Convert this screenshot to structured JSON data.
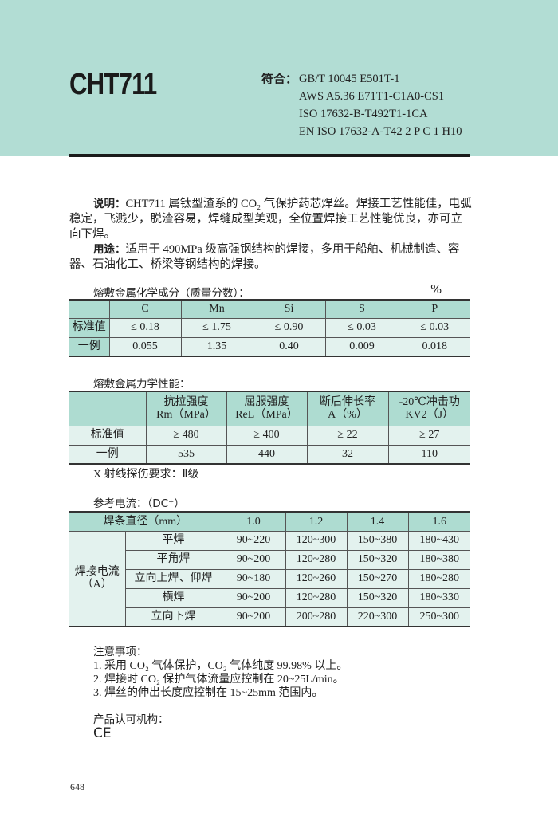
{
  "header": {
    "title": "CHT711",
    "standards_label": "符合：",
    "standards": [
      "GB/T 10045 E501T-1",
      "AWS A5.36 E71T1-C1A0-CS1",
      "ISO 17632-B-T492T1-1CA",
      "EN ISO 17632-A-T42 2 P C 1 H10"
    ]
  },
  "description": {
    "label": "说明：",
    "text": "CHT711 属钛型渣系的 CO₂ 气保护药芯焊丝。焊接工艺性能佳，电弧稳定，飞溅少，脱渣容易，焊缝成型美观，全位置焊接工艺性能优良，亦可立向下焊。"
  },
  "usage": {
    "label": "用途：",
    "text": "适用于 490MPa 级高强钢结构的焊接，多用于船舶、机械制造、容器、石油化工、桥梁等钢结构的焊接。"
  },
  "chem": {
    "title": "熔敷金属化学成分（质量分数）：",
    "unit": "%",
    "headers": [
      "",
      "C",
      "Mn",
      "Si",
      "S",
      "P"
    ],
    "rows": [
      [
        "标准值",
        "≤ 0.18",
        "≤ 1.75",
        "≤ 0.90",
        "≤ 0.03",
        "≤ 0.03"
      ],
      [
        "一例",
        "0.055",
        "1.35",
        "0.40",
        "0.009",
        "0.018"
      ]
    ]
  },
  "mech": {
    "title": "熔敷金属力学性能：",
    "headers": [
      "",
      "抗拉强度\nRm（MPa）",
      "屈服强度\nReL（MPa）",
      "断后伸长率\nA（%）",
      "-20℃冲击功\nKV2（J）"
    ],
    "rows": [
      [
        "标准值",
        "≥ 480",
        "≥ 400",
        "≥ 22",
        "≥ 27"
      ],
      [
        "一例",
        "535",
        "440",
        "32",
        "110"
      ]
    ],
    "xray": "X 射线探伤要求：Ⅱ级"
  },
  "current": {
    "title": "参考电流：（DC⁺）",
    "diam_header": "焊条直径（mm）",
    "diameters": [
      "1.0",
      "1.2",
      "1.4",
      "1.6"
    ],
    "group_label": "焊接电流\n（A）",
    "rows": [
      [
        "平焊",
        "90~220",
        "120~300",
        "150~380",
        "180~430"
      ],
      [
        "平角焊",
        "90~200",
        "120~280",
        "150~320",
        "180~380"
      ],
      [
        "立向上焊、仰焊",
        "90~180",
        "120~260",
        "150~270",
        "180~280"
      ],
      [
        "横焊",
        "90~200",
        "120~280",
        "150~320",
        "180~330"
      ],
      [
        "立向下焊",
        "90~200",
        "200~280",
        "220~300",
        "250~300"
      ]
    ]
  },
  "notes": {
    "title": "注意事项：",
    "items": [
      "1. 采用 CO₂ 气体保护，CO₂ 气体纯度 99.98% 以上。",
      "2. 焊接时 CO₂ 保护气体流量应控制在 20~25L/min。",
      "3. 焊丝的伸出长度应控制在 15~25mm 范围内。"
    ]
  },
  "cert": {
    "title": "产品认可机构：",
    "mark": "CE"
  },
  "page_number": "648"
}
